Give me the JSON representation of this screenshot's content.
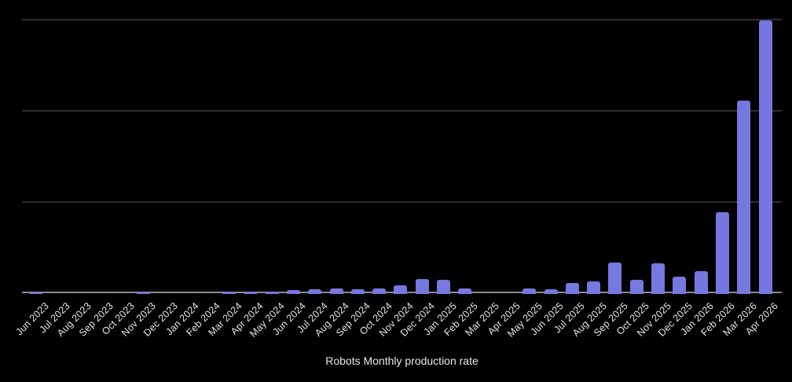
{
  "chart_data": {
    "type": "bar",
    "title": "Robots Monthly production rate",
    "categories": [
      "Jun 2023",
      "Jul 2023",
      "Aug 2023",
      "Sep 2023",
      "Oct 2023",
      "Nov 2023",
      "Dec 2023",
      "Jan 2024",
      "Feb 2024",
      "Mar 2024",
      "Apr 2024",
      "May 2024",
      "Jun 2024",
      "Jul 2024",
      "Aug 2024",
      "Sep 2024",
      "Oct 2024",
      "Nov 2024",
      "Dec 2024",
      "Jan 2025",
      "Feb 2025",
      "Mar 2025",
      "Apr 2025",
      "May 2025",
      "Jun 2025",
      "Jul 2025",
      "Aug 2025",
      "Sep 2025",
      "Oct 2025",
      "Nov 2025",
      "Dec 2025",
      "Jan 2026",
      "Feb 2026",
      "Mar 2026",
      "Apr 2026"
    ],
    "values": [
      0.02,
      0,
      0,
      0,
      0,
      0.02,
      0,
      0,
      0,
      0.03,
      0.03,
      0.03,
      0.045,
      0.05,
      0.06,
      0.05,
      0.06,
      0.095,
      0.165,
      0.155,
      0.06,
      0,
      0,
      0.06,
      0.05,
      0.12,
      0.14,
      0.345,
      0.155,
      0.335,
      0.19,
      0.25,
      0.9,
      2.12,
      3.0
    ],
    "values_unit": "relative units; y-axis has no visible tick labels, gridline spacing = 1 unit",
    "xlabel": "",
    "ylabel": "",
    "ylim": [
      0,
      3.05
    ],
    "y_gridlines_at": [
      1,
      2,
      3
    ],
    "y_tick_labels_visible": false,
    "legend": "none",
    "x_tick_rotation_deg": 45
  },
  "colors": {
    "background": "#000000",
    "bar_fill": "#7678DF",
    "gridline": "#2e2e2e",
    "axis_line": "#8a8a8a",
    "tick_label_text": "#e6e6e6",
    "title_text": "#e8e8e8"
  }
}
